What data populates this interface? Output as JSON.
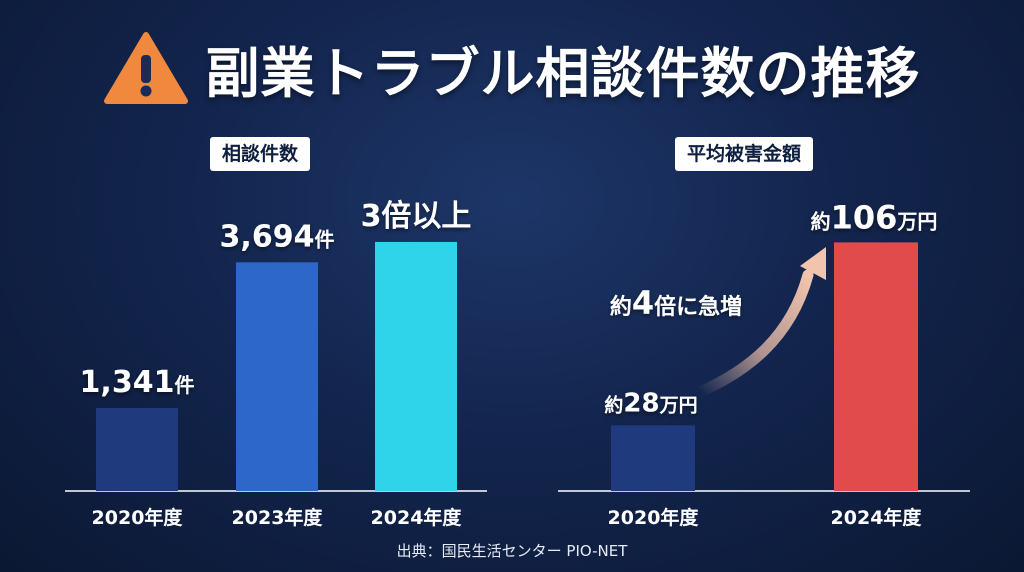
{
  "title": "副業トラブル相談件数の推移",
  "source": "出典：国民生活センター PIO-NET",
  "colors": {
    "bar_dark": "#1f3a7d",
    "bar_blue": "#2d68c9",
    "bar_cyan": "#2fd4ea",
    "bar_red": "#e24b4b",
    "highlight_cyan": "#38d6f0",
    "highlight_red": "#ff5a5a",
    "arrow": "#f2c4ad"
  },
  "chart_data": [
    {
      "type": "bar",
      "title": "相談件数",
      "categories": [
        "2020年度",
        "2023年度",
        "2024年度"
      ],
      "values": [
        1341,
        3694,
        4023
      ],
      "data_labels": [
        {
          "value": "1,341",
          "unit": "件"
        },
        {
          "value": "3,694",
          "unit": "件"
        },
        {
          "value": "3倍以上",
          "unit": ""
        }
      ],
      "ylim": [
        0,
        4200
      ]
    },
    {
      "type": "bar",
      "title": "平均被害金額",
      "categories": [
        "2020年度",
        "2024年度"
      ],
      "values": [
        28,
        106
      ],
      "data_labels": [
        {
          "prefix": "約",
          "value": "28",
          "unit": "万円"
        },
        {
          "prefix": "約",
          "value": "106",
          "unit": "万円"
        }
      ],
      "annotation": {
        "prefix": "約",
        "value": "4",
        "suffix": "倍に急増"
      },
      "ylim": [
        0,
        110
      ]
    }
  ]
}
